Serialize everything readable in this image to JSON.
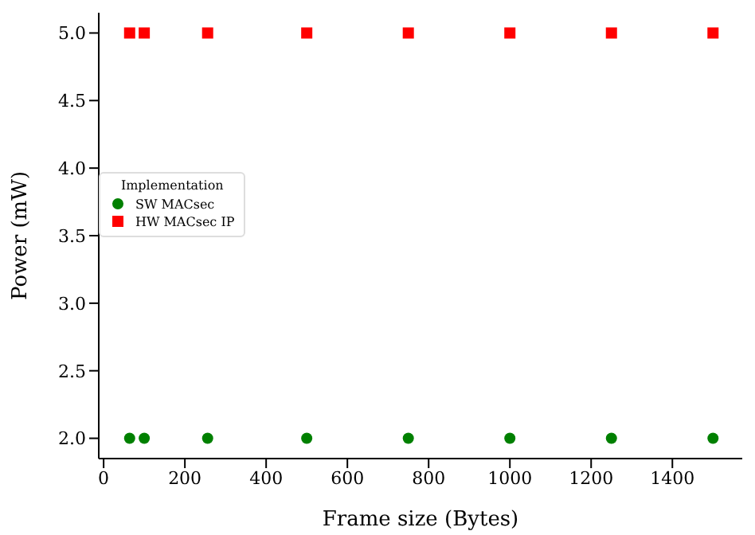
{
  "chart_data": {
    "type": "scatter",
    "xlabel": "Frame size (Bytes)",
    "ylabel": "Power (mW)",
    "legend_title": "Implementation",
    "legend": "left",
    "grid": false,
    "x": [
      64,
      100,
      256,
      500,
      750,
      1000,
      1250,
      1500
    ],
    "series": [
      {
        "name": "SW MACsec",
        "color": "#008000",
        "marker": "circle",
        "values": [
          2.0,
          2.0,
          2.0,
          2.0,
          2.0,
          2.0,
          2.0,
          2.0
        ]
      },
      {
        "name": "HW MACsec IP",
        "color": "#ff0000",
        "marker": "square",
        "values": [
          5.0,
          5.0,
          5.0,
          5.0,
          5.0,
          5.0,
          5.0,
          5.0
        ]
      }
    ],
    "xlim": [
      -12,
      1572
    ],
    "xticks": [
      0,
      200,
      400,
      600,
      800,
      1000,
      1200,
      1400
    ],
    "ylim": [
      1.85,
      5.15
    ],
    "yticks": [
      {
        "value": 2,
        "label": "2.0"
      },
      {
        "value": 2.5,
        "label": "2.5"
      },
      {
        "value": 3,
        "label": "3.0"
      },
      {
        "value": 3.5,
        "label": "3.5"
      },
      {
        "value": 4,
        "label": "4.0"
      },
      {
        "value": 4.5,
        "label": "4.5"
      },
      {
        "value": 5,
        "label": "5.0"
      }
    ]
  }
}
